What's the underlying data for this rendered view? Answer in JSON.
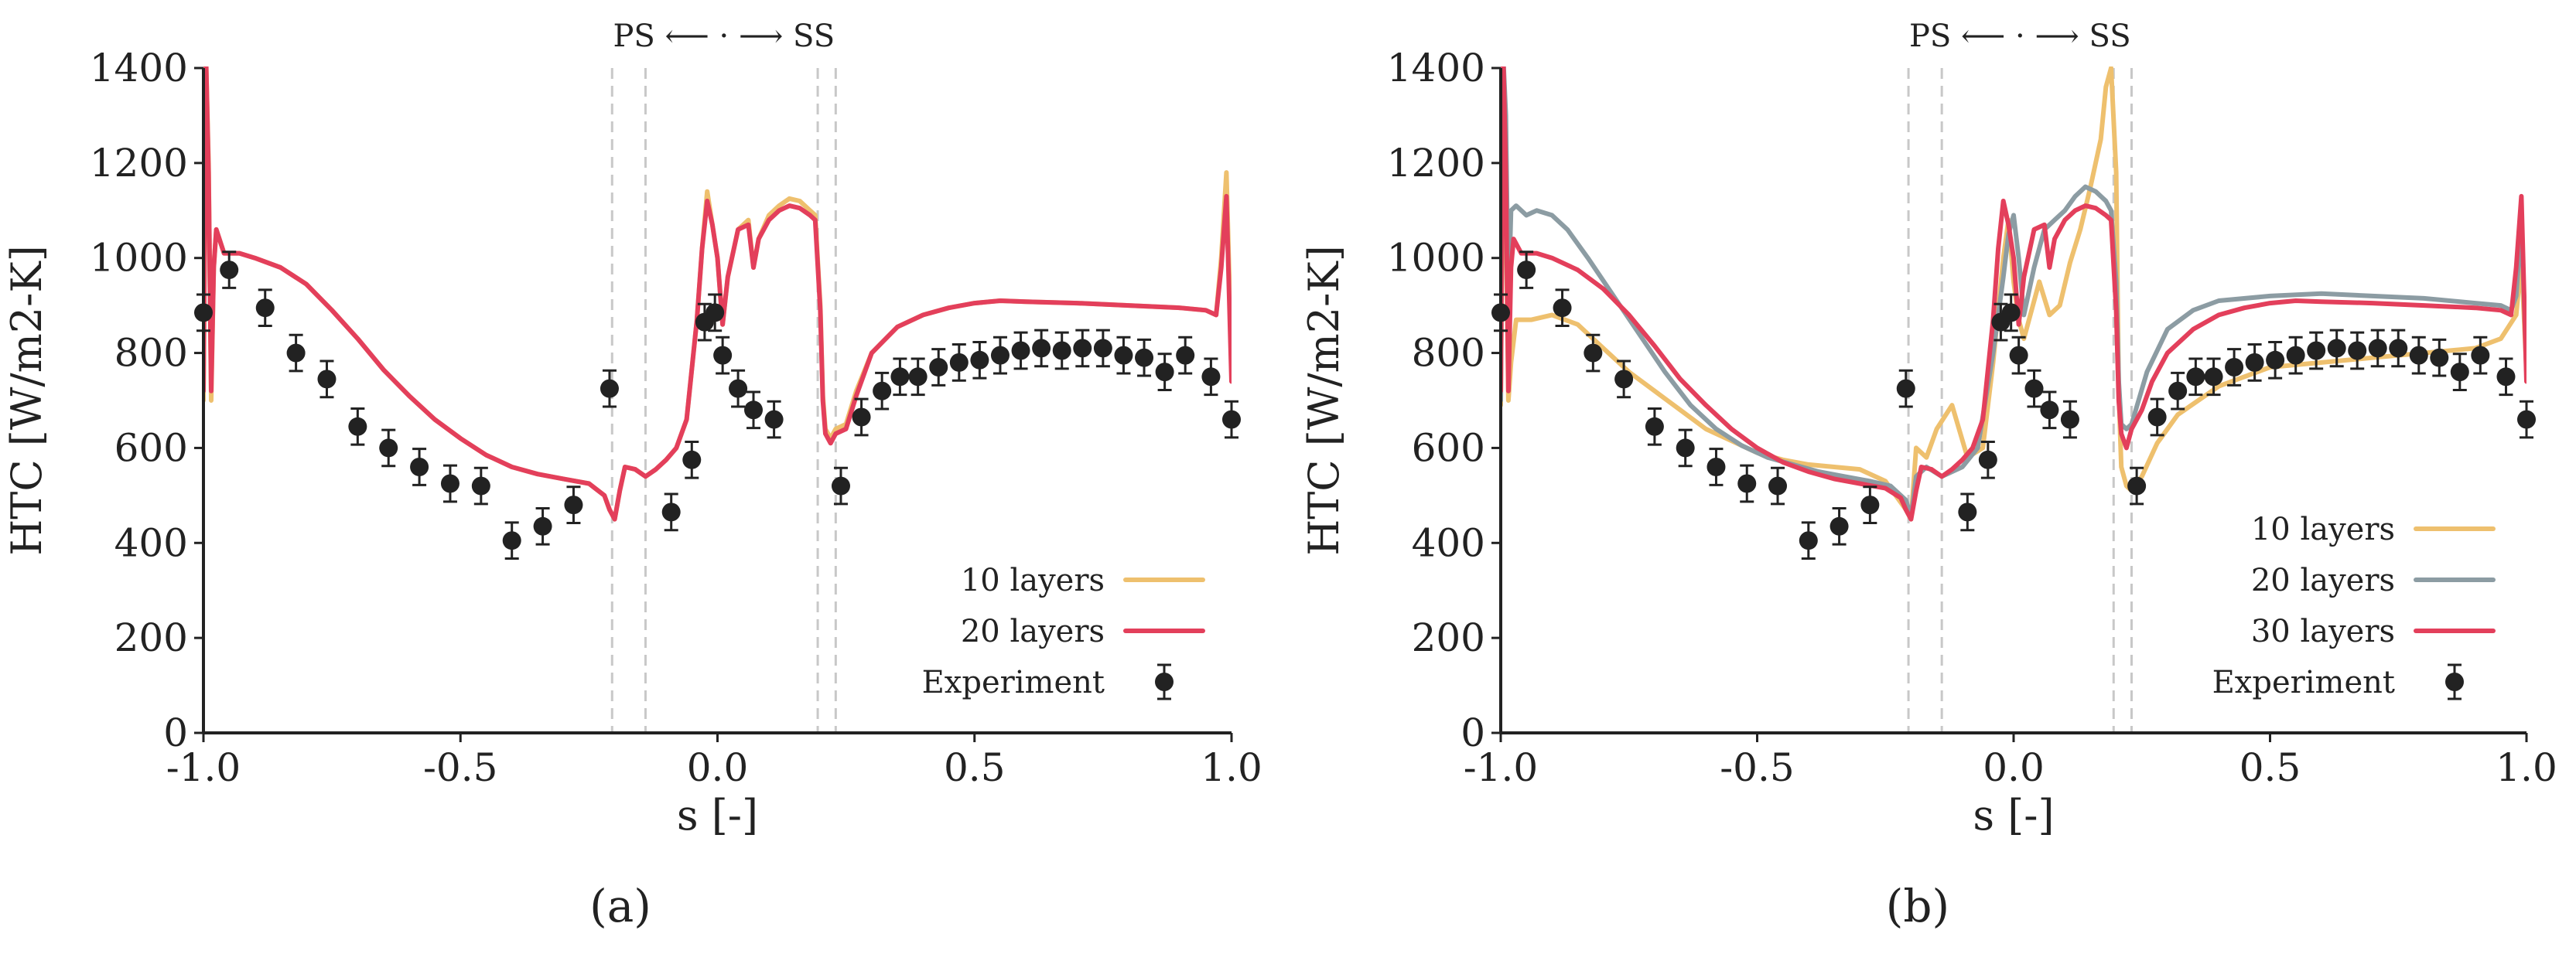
{
  "figure": {
    "panel_labels": [
      "(a)",
      "(b)"
    ]
  },
  "colors": {
    "10 layers": "#EEC06E",
    "20 layers": "#E33F5B",
    "30 layers": "#E33F5B",
    "gray20": "#8C9CA3",
    "experiment": "#222222",
    "dash": "#C8C8C8"
  },
  "chart_data": [
    {
      "type": "line",
      "panel": "(a)",
      "xlabel": "s [-]",
      "ylabel": "HTC [W/m2-K]",
      "xlim": [
        -1.0,
        1.0
      ],
      "ylim": [
        0,
        1400
      ],
      "xticks": [
        -1.0,
        -0.5,
        0.0,
        0.5,
        1.0
      ],
      "xtick_labels": [
        "-1.0",
        "-0.5",
        "0.0",
        "0.5",
        "1.0"
      ],
      "yticks": [
        0,
        200,
        400,
        600,
        800,
        1000,
        1200,
        1400
      ],
      "ytick_labels": [
        "0",
        "200",
        "400",
        "600",
        "800",
        "1000",
        "1200",
        "1400"
      ],
      "annotation": "PS ⟵ · ⟶ SS",
      "vlines": [
        -0.205,
        -0.14,
        0.195,
        0.23
      ],
      "legend_position": "lower-right",
      "series": [
        {
          "name": "10 layers",
          "color": "#EEC06E",
          "x": [
            -1.0,
            -0.995,
            -0.99,
            -0.985,
            -0.98,
            -0.975,
            -0.96,
            -0.93,
            -0.9,
            -0.85,
            -0.8,
            -0.75,
            -0.7,
            -0.65,
            -0.6,
            -0.55,
            -0.5,
            -0.45,
            -0.4,
            -0.35,
            -0.3,
            -0.25,
            -0.22,
            -0.21,
            -0.2,
            -0.19,
            -0.18,
            -0.16,
            -0.14,
            -0.12,
            -0.1,
            -0.08,
            -0.06,
            -0.04,
            -0.03,
            -0.02,
            -0.01,
            0.0,
            0.01,
            0.02,
            0.04,
            0.06,
            0.07,
            0.08,
            0.1,
            0.12,
            0.14,
            0.16,
            0.18,
            0.19,
            0.2,
            0.205,
            0.21,
            0.22,
            0.23,
            0.25,
            0.27,
            0.3,
            0.35,
            0.4,
            0.45,
            0.5,
            0.55,
            0.6,
            0.7,
            0.8,
            0.9,
            0.95,
            0.97,
            0.98,
            0.99,
            1.0
          ],
          "values": [
            700,
            1420,
            1200,
            700,
            980,
            1060,
            1010,
            1010,
            1000,
            980,
            945,
            890,
            830,
            765,
            710,
            660,
            620,
            585,
            560,
            545,
            535,
            525,
            500,
            470,
            450,
            510,
            560,
            555,
            540,
            555,
            575,
            600,
            660,
            870,
            1020,
            1140,
            1070,
            1000,
            860,
            960,
            1060,
            1080,
            980,
            1040,
            1090,
            1110,
            1125,
            1120,
            1100,
            1090,
            900,
            710,
            640,
            620,
            640,
            650,
            720,
            800,
            855,
            880,
            895,
            905,
            910,
            908,
            905,
            900,
            895,
            890,
            880,
            1000,
            1180,
            780
          ]
        },
        {
          "name": "20 layers",
          "color": "#E33F5B",
          "x": [
            -1.0,
            -0.995,
            -0.99,
            -0.985,
            -0.98,
            -0.975,
            -0.96,
            -0.93,
            -0.9,
            -0.85,
            -0.8,
            -0.75,
            -0.7,
            -0.65,
            -0.6,
            -0.55,
            -0.5,
            -0.45,
            -0.4,
            -0.35,
            -0.3,
            -0.25,
            -0.22,
            -0.21,
            -0.2,
            -0.19,
            -0.18,
            -0.16,
            -0.14,
            -0.12,
            -0.1,
            -0.08,
            -0.06,
            -0.04,
            -0.03,
            -0.02,
            -0.01,
            0.0,
            0.01,
            0.02,
            0.04,
            0.06,
            0.07,
            0.08,
            0.1,
            0.12,
            0.14,
            0.16,
            0.18,
            0.19,
            0.2,
            0.205,
            0.21,
            0.22,
            0.23,
            0.25,
            0.27,
            0.3,
            0.35,
            0.4,
            0.45,
            0.5,
            0.55,
            0.6,
            0.7,
            0.8,
            0.9,
            0.95,
            0.97,
            0.98,
            0.99,
            1.0
          ],
          "values": [
            720,
            1420,
            1180,
            720,
            980,
            1060,
            1010,
            1010,
            1000,
            980,
            945,
            890,
            830,
            765,
            710,
            660,
            620,
            585,
            560,
            545,
            535,
            525,
            500,
            470,
            450,
            510,
            560,
            555,
            540,
            555,
            575,
            600,
            660,
            870,
            1020,
            1120,
            1070,
            1000,
            860,
            960,
            1060,
            1070,
            980,
            1040,
            1080,
            1100,
            1110,
            1105,
            1090,
            1080,
            890,
            700,
            630,
            610,
            630,
            640,
            710,
            800,
            855,
            880,
            895,
            905,
            910,
            908,
            905,
            900,
            895,
            890,
            880,
            980,
            1130,
            740
          ]
        },
        {
          "name": "Experiment",
          "color": "#222222",
          "kind": "errorbar",
          "x": [
            -1.0,
            -0.95,
            -0.88,
            -0.82,
            -0.76,
            -0.7,
            -0.64,
            -0.58,
            -0.52,
            -0.46,
            -0.4,
            -0.34,
            -0.28,
            -0.21,
            -0.09,
            -0.05,
            -0.025,
            -0.005,
            0.01,
            0.04,
            0.07,
            0.11,
            0.24,
            0.28,
            0.32,
            0.355,
            0.39,
            0.43,
            0.47,
            0.51,
            0.55,
            0.59,
            0.63,
            0.67,
            0.71,
            0.75,
            0.79,
            0.83,
            0.87,
            0.91,
            0.96,
            1.0
          ],
          "values": [
            885,
            975,
            895,
            800,
            745,
            645,
            600,
            560,
            525,
            520,
            405,
            435,
            480,
            725,
            465,
            575,
            865,
            885,
            795,
            725,
            680,
            660,
            520,
            665,
            720,
            750,
            750,
            770,
            780,
            785,
            795,
            805,
            810,
            805,
            810,
            810,
            795,
            790,
            760,
            795,
            750,
            660
          ],
          "error": 38
        }
      ]
    },
    {
      "type": "line",
      "panel": "(b)",
      "xlabel": "s [-]",
      "ylabel": "HTC [W/m2-K]",
      "xlim": [
        -1.0,
        1.0
      ],
      "ylim": [
        0,
        1400
      ],
      "xticks": [
        -1.0,
        -0.5,
        0.0,
        0.5,
        1.0
      ],
      "xtick_labels": [
        "-1.0",
        "-0.5",
        "0.0",
        "0.5",
        "1.0"
      ],
      "yticks": [
        0,
        200,
        400,
        600,
        800,
        1000,
        1200,
        1400
      ],
      "ytick_labels": [
        "0",
        "200",
        "400",
        "600",
        "800",
        "1000",
        "1200",
        "1400"
      ],
      "annotation": "PS ⟵ · ⟶ SS",
      "vlines": [
        -0.205,
        -0.14,
        0.195,
        0.23
      ],
      "legend_position": "lower-right",
      "series": [
        {
          "name": "10 layers",
          "color": "#EEC06E",
          "x": [
            -1.0,
            -0.995,
            -0.99,
            -0.985,
            -0.98,
            -0.97,
            -0.94,
            -0.9,
            -0.85,
            -0.8,
            -0.75,
            -0.7,
            -0.65,
            -0.6,
            -0.55,
            -0.5,
            -0.45,
            -0.4,
            -0.35,
            -0.3,
            -0.25,
            -0.21,
            -0.2,
            -0.19,
            -0.17,
            -0.15,
            -0.12,
            -0.09,
            -0.06,
            -0.04,
            -0.02,
            -0.01,
            0.0,
            0.01,
            0.02,
            0.05,
            0.07,
            0.09,
            0.11,
            0.13,
            0.15,
            0.17,
            0.18,
            0.19,
            0.2,
            0.205,
            0.21,
            0.22,
            0.23,
            0.25,
            0.28,
            0.32,
            0.36,
            0.4,
            0.45,
            0.5,
            0.6,
            0.7,
            0.8,
            0.9,
            0.95,
            0.98,
            0.99,
            1.0
          ],
          "values": [
            690,
            1400,
            1100,
            700,
            780,
            870,
            870,
            880,
            860,
            810,
            760,
            720,
            680,
            640,
            615,
            590,
            575,
            565,
            560,
            555,
            530,
            470,
            450,
            600,
            580,
            640,
            690,
            580,
            600,
            780,
            1000,
            1080,
            950,
            870,
            830,
            950,
            880,
            900,
            990,
            1060,
            1150,
            1250,
            1360,
            1400,
            1180,
            720,
            560,
            520,
            510,
            540,
            610,
            670,
            700,
            730,
            750,
            770,
            780,
            790,
            800,
            810,
            830,
            880,
            1000,
            760
          ]
        },
        {
          "name": "20 layers",
          "color": "#8C9CA3",
          "x": [
            -1.0,
            -0.995,
            -0.99,
            -0.985,
            -0.98,
            -0.97,
            -0.95,
            -0.93,
            -0.9,
            -0.87,
            -0.83,
            -0.78,
            -0.73,
            -0.68,
            -0.63,
            -0.58,
            -0.53,
            -0.48,
            -0.43,
            -0.38,
            -0.33,
            -0.28,
            -0.24,
            -0.21,
            -0.2,
            -0.19,
            -0.17,
            -0.14,
            -0.1,
            -0.07,
            -0.04,
            -0.02,
            -0.01,
            0.0,
            0.01,
            0.02,
            0.04,
            0.06,
            0.08,
            0.1,
            0.12,
            0.14,
            0.16,
            0.18,
            0.19,
            0.2,
            0.205,
            0.21,
            0.22,
            0.23,
            0.26,
            0.3,
            0.35,
            0.4,
            0.5,
            0.6,
            0.7,
            0.8,
            0.9,
            0.95,
            0.97,
            0.98,
            0.99,
            1.0
          ],
          "values": [
            700,
            1420,
            1300,
            900,
            1100,
            1110,
            1090,
            1100,
            1090,
            1060,
            1000,
            920,
            840,
            760,
            690,
            640,
            605,
            580,
            565,
            550,
            540,
            530,
            520,
            490,
            455,
            540,
            560,
            540,
            560,
            600,
            800,
            960,
            1050,
            1090,
            1000,
            880,
            980,
            1060,
            1080,
            1100,
            1130,
            1150,
            1140,
            1120,
            1100,
            950,
            740,
            650,
            640,
            650,
            760,
            850,
            890,
            910,
            920,
            925,
            920,
            915,
            905,
            900,
            890,
            920,
            1080,
            760
          ]
        },
        {
          "name": "30 layers",
          "color": "#E33F5B",
          "x": [
            -1.0,
            -0.995,
            -0.99,
            -0.985,
            -0.98,
            -0.975,
            -0.96,
            -0.93,
            -0.9,
            -0.85,
            -0.8,
            -0.75,
            -0.7,
            -0.65,
            -0.6,
            -0.55,
            -0.5,
            -0.45,
            -0.4,
            -0.35,
            -0.3,
            -0.25,
            -0.22,
            -0.21,
            -0.2,
            -0.19,
            -0.18,
            -0.16,
            -0.14,
            -0.12,
            -0.1,
            -0.08,
            -0.06,
            -0.04,
            -0.03,
            -0.02,
            -0.01,
            0.0,
            0.01,
            0.02,
            0.04,
            0.06,
            0.07,
            0.08,
            0.1,
            0.12,
            0.14,
            0.16,
            0.18,
            0.19,
            0.2,
            0.205,
            0.21,
            0.22,
            0.23,
            0.25,
            0.27,
            0.3,
            0.35,
            0.4,
            0.45,
            0.5,
            0.55,
            0.6,
            0.7,
            0.8,
            0.9,
            0.95,
            0.97,
            0.98,
            0.99,
            1.0
          ],
          "values": [
            720,
            1420,
            1180,
            720,
            980,
            1040,
            1010,
            1010,
            1000,
            975,
            935,
            880,
            815,
            745,
            690,
            640,
            600,
            570,
            550,
            535,
            525,
            515,
            495,
            470,
            450,
            510,
            560,
            555,
            540,
            555,
            575,
            600,
            660,
            870,
            1020,
            1120,
            1070,
            1000,
            860,
            960,
            1060,
            1070,
            980,
            1040,
            1080,
            1100,
            1110,
            1105,
            1090,
            1080,
            890,
            700,
            630,
            600,
            640,
            680,
            740,
            800,
            850,
            880,
            895,
            905,
            910,
            908,
            905,
            900,
            895,
            890,
            880,
            980,
            1130,
            740
          ]
        },
        {
          "name": "Experiment",
          "color": "#222222",
          "kind": "errorbar",
          "x": [
            -1.0,
            -0.95,
            -0.88,
            -0.82,
            -0.76,
            -0.7,
            -0.64,
            -0.58,
            -0.52,
            -0.46,
            -0.4,
            -0.34,
            -0.28,
            -0.21,
            -0.09,
            -0.05,
            -0.025,
            -0.005,
            0.01,
            0.04,
            0.07,
            0.11,
            0.24,
            0.28,
            0.32,
            0.355,
            0.39,
            0.43,
            0.47,
            0.51,
            0.55,
            0.59,
            0.63,
            0.67,
            0.71,
            0.75,
            0.79,
            0.83,
            0.87,
            0.91,
            0.96,
            1.0
          ],
          "values": [
            885,
            975,
            895,
            800,
            745,
            645,
            600,
            560,
            525,
            520,
            405,
            435,
            480,
            725,
            465,
            575,
            865,
            885,
            795,
            725,
            680,
            660,
            520,
            665,
            720,
            750,
            750,
            770,
            780,
            785,
            795,
            805,
            810,
            805,
            810,
            810,
            795,
            790,
            760,
            795,
            750,
            660
          ],
          "error": 38
        }
      ]
    }
  ]
}
